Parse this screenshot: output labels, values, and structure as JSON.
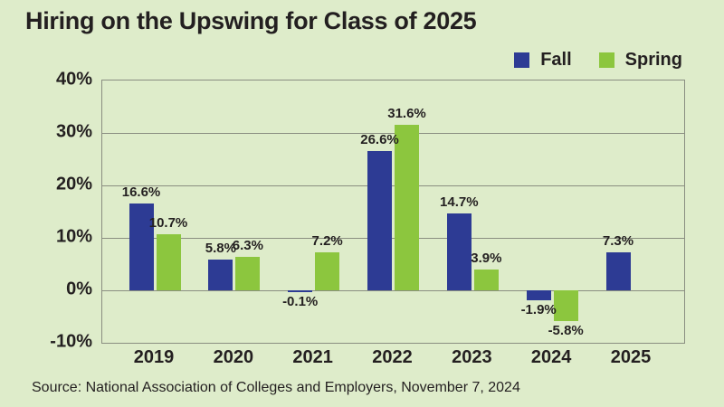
{
  "chart_data": {
    "type": "bar",
    "title": "Hiring on the Upswing for Class of 2025",
    "categories": [
      "2019",
      "2020",
      "2021",
      "2022",
      "2023",
      "2024",
      "2025"
    ],
    "series": [
      {
        "name": "Fall",
        "color": "#2d3b94",
        "values": [
          16.6,
          5.8,
          -0.1,
          26.6,
          14.7,
          -1.9,
          7.3
        ]
      },
      {
        "name": "Spring",
        "color": "#8cc63e",
        "values": [
          10.7,
          6.3,
          7.2,
          31.6,
          3.9,
          -5.8,
          null
        ]
      }
    ],
    "ylim": [
      -10,
      40
    ],
    "yticks": [
      40,
      30,
      20,
      10,
      0,
      -10
    ],
    "ytick_suffix": "%",
    "value_label_suffix": "%",
    "grid": true,
    "legend_position": "top-right",
    "source": "Source: National Association of Colleges and Employers, November 7, 2024"
  },
  "colors": {
    "background": "#deecca",
    "text": "#231f20",
    "gridline": "#8a8e81",
    "fall": "#2d3b94",
    "spring": "#8cc63e"
  }
}
